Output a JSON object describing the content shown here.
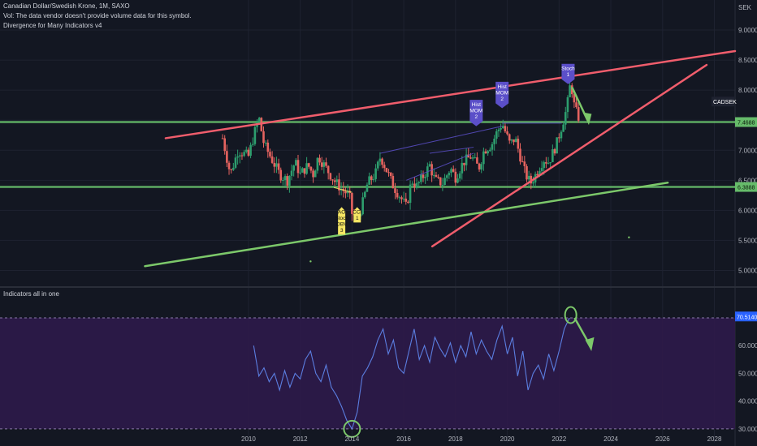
{
  "header": {
    "title": "Canadian Dollar/Swedish Krone, 1M, SAXO",
    "vol_note": "Vol: The data vendor doesn't provide volume data for this symbol.",
    "indicator_note": "Divergence for Many Indicators v4"
  },
  "lower_pane": {
    "title": "Indicators all in one"
  },
  "chart_data": [
    {
      "type": "candlestick",
      "symbol": "CADSEK",
      "currency_label": "SEK",
      "y_ticks": [
        "9.0000",
        "8.5000",
        "8.0000",
        "7.5000",
        "7.0000",
        "6.5000",
        "6.0000",
        "5.5000",
        "5.0000"
      ],
      "y_tick_values": [
        9.0,
        8.5,
        8.0,
        7.5,
        7.0,
        6.5,
        6.0,
        5.5,
        5.0
      ],
      "ylim": [
        4.75,
        9.5
      ],
      "x_ticks": [
        "2010",
        "2012",
        "2014",
        "2016",
        "2018",
        "2020",
        "2022",
        "2024",
        "2026",
        "2028"
      ],
      "x_tick_values": [
        2010,
        2012,
        2014,
        2016,
        2018,
        2020,
        2022,
        2024,
        2026,
        2028
      ],
      "xlim": [
        2000.4,
        2028.8
      ],
      "price_path": [
        [
          2009.0,
          7.2
        ],
        [
          2009.3,
          6.6
        ],
        [
          2009.6,
          7.0
        ],
        [
          2010.0,
          6.9
        ],
        [
          2010.3,
          7.4
        ],
        [
          2010.4,
          7.55
        ],
        [
          2010.6,
          7.1
        ],
        [
          2010.9,
          6.85
        ],
        [
          2011.2,
          6.6
        ],
        [
          2011.5,
          6.5
        ],
        [
          2011.8,
          6.8
        ],
        [
          2012.0,
          6.6
        ],
        [
          2012.3,
          6.75
        ],
        [
          2012.5,
          6.6
        ],
        [
          2012.7,
          6.9
        ],
        [
          2013.0,
          6.7
        ],
        [
          2013.3,
          6.5
        ],
        [
          2013.6,
          6.35
        ],
        [
          2013.9,
          6.25
        ],
        [
          2014.0,
          5.95
        ],
        [
          2014.2,
          5.85
        ],
        [
          2014.4,
          6.1
        ],
        [
          2014.6,
          6.45
        ],
        [
          2014.9,
          6.6
        ],
        [
          2015.1,
          6.9
        ],
        [
          2015.4,
          6.6
        ],
        [
          2015.6,
          6.4
        ],
        [
          2015.9,
          6.2
        ],
        [
          2016.1,
          6.05
        ],
        [
          2016.3,
          6.5
        ],
        [
          2016.5,
          6.4
        ],
        [
          2016.8,
          6.6
        ],
        [
          2017.0,
          6.75
        ],
        [
          2017.2,
          6.5
        ],
        [
          2017.5,
          6.45
        ],
        [
          2017.8,
          6.7
        ],
        [
          2018.0,
          6.55
        ],
        [
          2018.3,
          6.8
        ],
        [
          2018.6,
          6.9
        ],
        [
          2018.9,
          6.7
        ],
        [
          2019.1,
          7.0
        ],
        [
          2019.4,
          7.1
        ],
        [
          2019.6,
          7.3
        ],
        [
          2019.8,
          7.45
        ],
        [
          2020.1,
          7.1
        ],
        [
          2020.3,
          7.2
        ],
        [
          2020.5,
          6.9
        ],
        [
          2020.7,
          6.6
        ],
        [
          2020.9,
          6.45
        ],
        [
          2021.1,
          6.6
        ],
        [
          2021.4,
          6.85
        ],
        [
          2021.6,
          6.8
        ],
        [
          2021.9,
          7.1
        ],
        [
          2022.1,
          7.4
        ],
        [
          2022.3,
          7.7
        ],
        [
          2022.45,
          8.15
        ],
        [
          2022.6,
          7.7
        ],
        [
          2022.75,
          7.55
        ]
      ],
      "horizontal_levels": [
        {
          "value": 7.4688,
          "label": "7.4688",
          "color": "#66bb6a"
        },
        {
          "value": 6.3888,
          "label": "6.3888",
          "color": "#66bb6a"
        }
      ],
      "last_price": {
        "label": "CADSEK",
        "value": 7.81
      },
      "trendlines": [
        {
          "color": "#f05d6c",
          "from": [
            2006.8,
            7.2
          ],
          "to": [
            2028.8,
            8.65
          ]
        },
        {
          "color": "#f05d6c",
          "from": [
            2017.1,
            5.4
          ],
          "to": [
            2027.7,
            8.42
          ]
        },
        {
          "color": "#7cc86a",
          "from": [
            2006.0,
            5.07
          ],
          "to": [
            2026.2,
            6.46
          ]
        }
      ],
      "annotations": [
        {
          "text": "Hist MOM 2",
          "x": 2018.8,
          "y": 7.4,
          "color": "#5b4fc9"
        },
        {
          "text": "Hist MOM 2",
          "x": 2019.8,
          "y": 7.7,
          "color": "#5b4fc9"
        },
        {
          "text": "Stoch 1",
          "x": 2022.35,
          "y": 8.1,
          "color": "#5b4fc9"
        },
        {
          "text": "AO Stoch OBV 3",
          "x": 2013.6,
          "y": 6.0,
          "color": "#f5e663"
        },
        {
          "text": "CCI 1",
          "x": 2014.2,
          "y": 6.0,
          "color": "#f5e663"
        }
      ]
    },
    {
      "type": "line",
      "name": "",
      "y_ticks": [
        "70.0000",
        "60.0000",
        "50.0000",
        "40.0000",
        "30.0000"
      ],
      "y_tick_values": [
        70,
        60,
        50,
        40,
        30
      ],
      "ylim": [
        25,
        77
      ],
      "band": [
        30,
        70
      ],
      "last_value_label": "70.5140",
      "points": [
        [
          2010.2,
          60
        ],
        [
          2010.4,
          49
        ],
        [
          2010.6,
          52
        ],
        [
          2010.8,
          47
        ],
        [
          2011.0,
          50
        ],
        [
          2011.2,
          44
        ],
        [
          2011.4,
          51
        ],
        [
          2011.6,
          45
        ],
        [
          2011.8,
          50
        ],
        [
          2012.0,
          48
        ],
        [
          2012.2,
          55
        ],
        [
          2012.4,
          58
        ],
        [
          2012.6,
          50
        ],
        [
          2012.8,
          47
        ],
        [
          2013.0,
          53
        ],
        [
          2013.2,
          45
        ],
        [
          2013.4,
          42
        ],
        [
          2013.6,
          38
        ],
        [
          2013.8,
          33
        ],
        [
          2014.0,
          30
        ],
        [
          2014.2,
          36
        ],
        [
          2014.4,
          49
        ],
        [
          2014.6,
          52
        ],
        [
          2014.8,
          56
        ],
        [
          2015.0,
          62
        ],
        [
          2015.2,
          66
        ],
        [
          2015.4,
          57
        ],
        [
          2015.6,
          62
        ],
        [
          2015.8,
          52
        ],
        [
          2016.0,
          50
        ],
        [
          2016.2,
          58
        ],
        [
          2016.4,
          66
        ],
        [
          2016.6,
          55
        ],
        [
          2016.8,
          60
        ],
        [
          2017.0,
          54
        ],
        [
          2017.2,
          63
        ],
        [
          2017.4,
          59
        ],
        [
          2017.6,
          56
        ],
        [
          2017.8,
          61
        ],
        [
          2018.0,
          54
        ],
        [
          2018.2,
          60
        ],
        [
          2018.4,
          56
        ],
        [
          2018.6,
          65
        ],
        [
          2018.8,
          57
        ],
        [
          2019.0,
          62
        ],
        [
          2019.2,
          58
        ],
        [
          2019.4,
          55
        ],
        [
          2019.6,
          62
        ],
        [
          2019.8,
          67
        ],
        [
          2020.0,
          57
        ],
        [
          2020.2,
          63
        ],
        [
          2020.4,
          49
        ],
        [
          2020.6,
          58
        ],
        [
          2020.8,
          44
        ],
        [
          2021.0,
          50
        ],
        [
          2021.2,
          53
        ],
        [
          2021.4,
          48
        ],
        [
          2021.6,
          57
        ],
        [
          2021.8,
          51
        ],
        [
          2022.0,
          58
        ],
        [
          2022.2,
          66
        ],
        [
          2022.4,
          70
        ]
      ]
    }
  ],
  "colors": {
    "background": "#131722",
    "up": "#2d9e6e",
    "down": "#e5635f",
    "rsi_line": "#5b7ee0",
    "band_fill": "#2e1a4a",
    "markup_green": "#7cc86a"
  }
}
